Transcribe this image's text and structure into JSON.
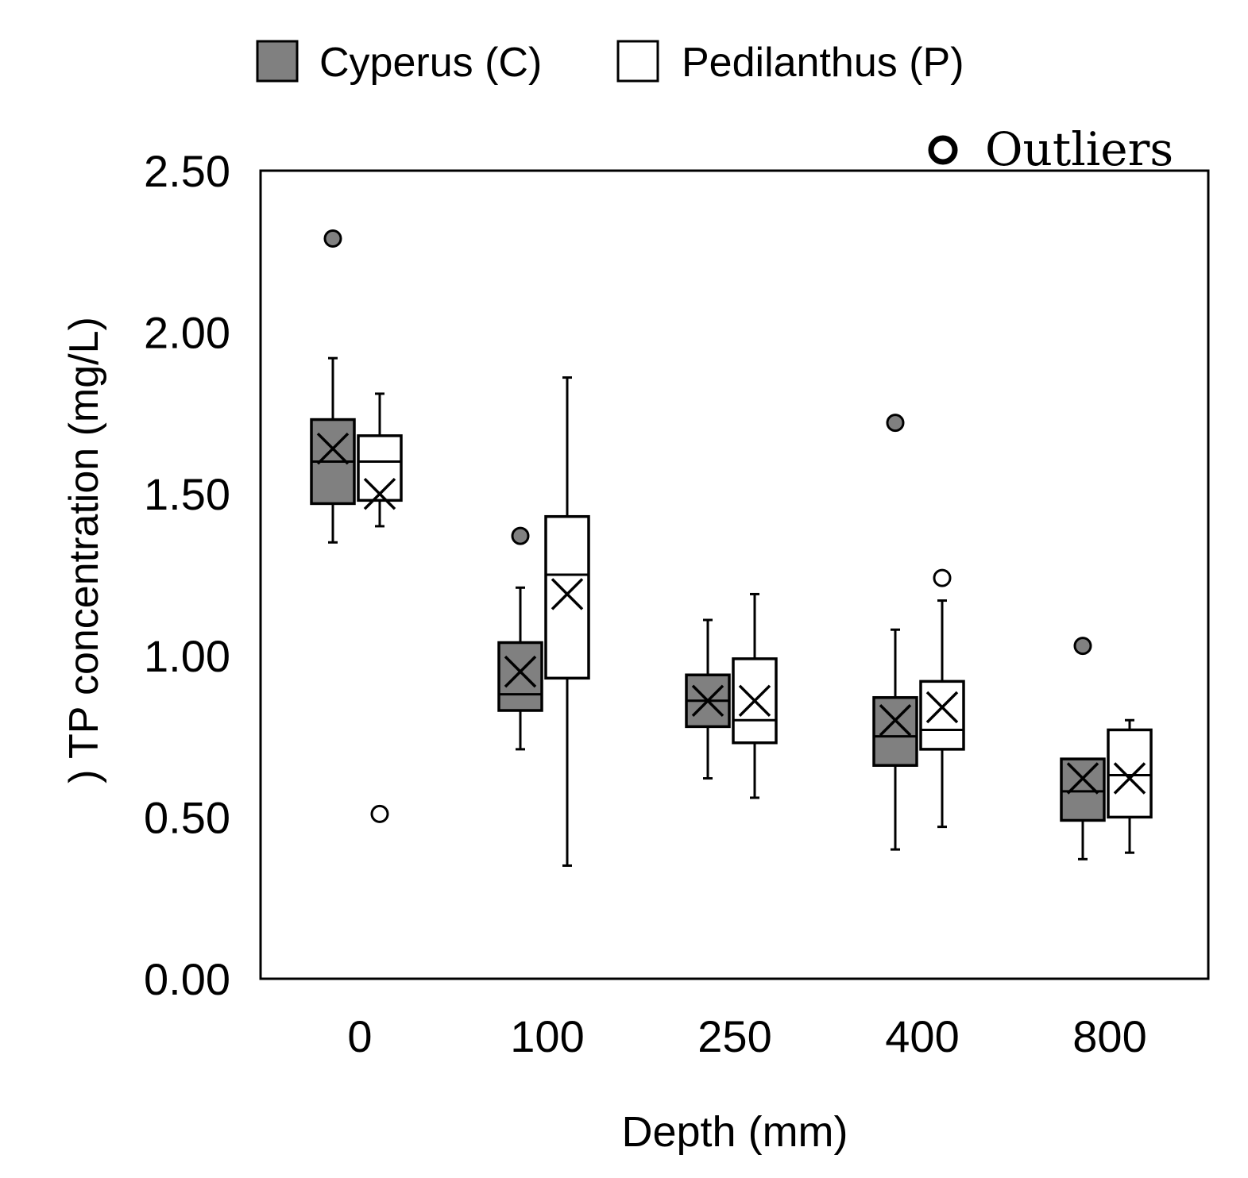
{
  "chart_data": {
    "type": "box",
    "title": "",
    "xlabel": "Depth (mm)",
    "ylabel": ") TP concentration (mg/L)",
    "ylim": [
      0,
      2.5
    ],
    "yticks": [
      "0.00",
      "0.50",
      "1.00",
      "1.50",
      "2.00",
      "2.50"
    ],
    "ytick_values": [
      0,
      0.5,
      1.0,
      1.5,
      2.0,
      2.5
    ],
    "categories": [
      "0",
      "100",
      "250",
      "400",
      "800"
    ],
    "legend": {
      "position": "top",
      "entries": [
        "Cyperus (C)",
        "Pedilanthus (P)"
      ],
      "outlier_label": "Outliers"
    },
    "series": [
      {
        "name": "Cyperus (C)",
        "color": "#808080",
        "boxes": [
          {
            "min": 1.35,
            "q1": 1.47,
            "median": 1.6,
            "q3": 1.73,
            "max": 1.92,
            "mean": 1.64,
            "outliers": [
              2.29
            ]
          },
          {
            "min": 0.71,
            "q1": 0.83,
            "median": 0.88,
            "q3": 1.04,
            "max": 1.21,
            "mean": 0.95,
            "outliers": [
              1.37
            ]
          },
          {
            "min": 0.62,
            "q1": 0.78,
            "median": 0.86,
            "q3": 0.94,
            "max": 1.11,
            "mean": 0.86,
            "outliers": []
          },
          {
            "min": 0.4,
            "q1": 0.66,
            "median": 0.75,
            "q3": 0.87,
            "max": 1.08,
            "mean": 0.8,
            "outliers": [
              1.72
            ]
          },
          {
            "min": 0.37,
            "q1": 0.49,
            "median": 0.58,
            "q3": 0.68,
            "max": 0.68,
            "mean": 0.62,
            "outliers": [
              1.03
            ]
          }
        ]
      },
      {
        "name": "Pedilanthus (P)",
        "color": "#ffffff",
        "boxes": [
          {
            "min": 1.4,
            "q1": 1.48,
            "median": 1.6,
            "q3": 1.68,
            "max": 1.81,
            "mean": 1.5,
            "outliers": [
              0.51
            ]
          },
          {
            "min": 0.35,
            "q1": 0.93,
            "median": 1.25,
            "q3": 1.43,
            "max": 1.86,
            "mean": 1.19,
            "outliers": []
          },
          {
            "min": 0.56,
            "q1": 0.73,
            "median": 0.8,
            "q3": 0.99,
            "max": 1.19,
            "mean": 0.86,
            "outliers": []
          },
          {
            "min": 0.47,
            "q1": 0.71,
            "median": 0.77,
            "q3": 0.92,
            "max": 1.17,
            "mean": 0.84,
            "outliers": [
              1.24
            ]
          },
          {
            "min": 0.39,
            "q1": 0.5,
            "median": 0.63,
            "q3": 0.77,
            "max": 0.8,
            "mean": 0.62,
            "outliers": []
          }
        ]
      }
    ]
  }
}
